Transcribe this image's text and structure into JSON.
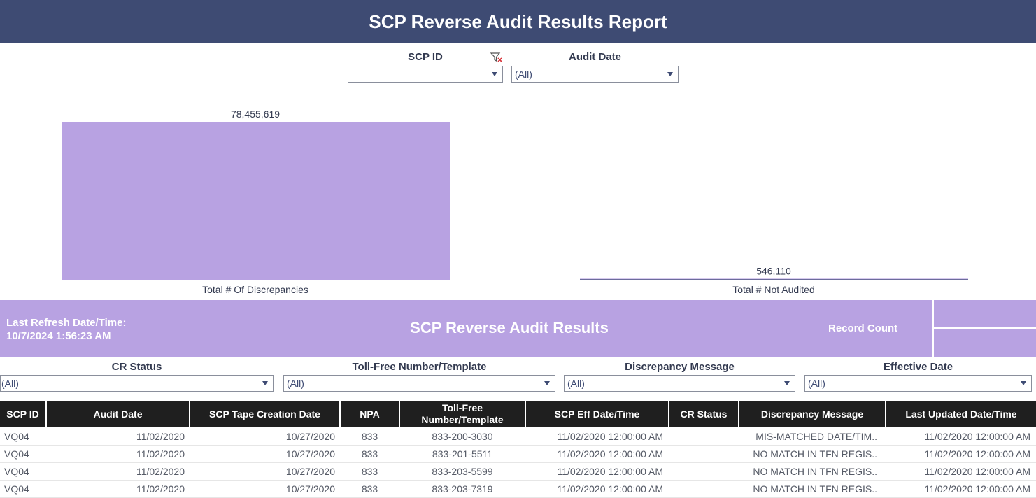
{
  "header": {
    "title": "SCP Reverse Audit Results Report"
  },
  "filters_top": {
    "scp_id": {
      "label": "SCP ID",
      "value": ""
    },
    "audit_date": {
      "label": "Audit Date",
      "value": "(All)"
    }
  },
  "chart_data": {
    "type": "bar",
    "categories": [
      "Total # Of Discrepancies",
      "Total # Not Audited"
    ],
    "values": [
      78455619,
      546110
    ],
    "value_labels": [
      "78,455,619",
      "546,110"
    ],
    "colors": {
      "bar": "#b8a2e2"
    }
  },
  "banner": {
    "refresh_label": "Last Refresh Date/Time:",
    "refresh_value": "10/7/2024 1:56:23 AM",
    "title": "SCP Reverse Audit Results",
    "record_count_label": "Record Count"
  },
  "filters_sub": [
    {
      "label": "CR Status",
      "value": "(All)"
    },
    {
      "label": "Toll-Free Number/Template",
      "value": "(All)"
    },
    {
      "label": "Discrepancy Message",
      "value": "(All)"
    },
    {
      "label": "Effective Date",
      "value": "(All)"
    }
  ],
  "table": {
    "headers": [
      "SCP ID",
      "Audit Date",
      "SCP Tape Creation Date",
      "NPA",
      "Toll-Free Number/Template",
      "SCP Eff Date/Time",
      "CR Status",
      "Discrepancy Message",
      "Last Updated Date/Time"
    ],
    "rows": [
      [
        "VQ04",
        "11/02/2020",
        "10/27/2020",
        "833",
        "833-200-3030",
        "11/02/2020 12:00:00 AM",
        "",
        "MIS-MATCHED DATE/TIM..",
        "11/02/2020 12:00:00 AM"
      ],
      [
        "VQ04",
        "11/02/2020",
        "10/27/2020",
        "833",
        "833-201-5511",
        "11/02/2020 12:00:00 AM",
        "",
        "NO MATCH IN TFN REGIS..",
        "11/02/2020 12:00:00 AM"
      ],
      [
        "VQ04",
        "11/02/2020",
        "10/27/2020",
        "833",
        "833-203-5599",
        "11/02/2020 12:00:00 AM",
        "",
        "NO MATCH IN TFN REGIS..",
        "11/02/2020 12:00:00 AM"
      ],
      [
        "VQ04",
        "11/02/2020",
        "10/27/2020",
        "833",
        "833-203-7319",
        "11/02/2020 12:00:00 AM",
        "",
        "NO MATCH IN TFN REGIS..",
        "11/02/2020 12:00:00 AM"
      ]
    ]
  }
}
